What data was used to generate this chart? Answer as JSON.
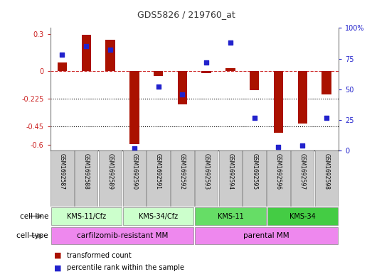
{
  "title": "GDS5826 / 219760_at",
  "samples": [
    "GSM1692587",
    "GSM1692588",
    "GSM1692589",
    "GSM1692590",
    "GSM1692591",
    "GSM1692592",
    "GSM1692593",
    "GSM1692594",
    "GSM1692595",
    "GSM1692596",
    "GSM1692597",
    "GSM1692598"
  ],
  "transformed_count": [
    0.07,
    0.295,
    0.255,
    -0.595,
    -0.04,
    -0.27,
    -0.02,
    0.02,
    -0.16,
    -0.505,
    -0.43,
    -0.19
  ],
  "percentile_rank": [
    78,
    85,
    82,
    2,
    52,
    46,
    72,
    88,
    27,
    3,
    4,
    27
  ],
  "cell_line_groups": [
    {
      "label": "KMS-11/Cfz",
      "start": 0,
      "end": 3,
      "color": "#ccffcc"
    },
    {
      "label": "KMS-34/Cfz",
      "start": 3,
      "end": 6,
      "color": "#ccffcc"
    },
    {
      "label": "KMS-11",
      "start": 6,
      "end": 9,
      "color": "#66dd66"
    },
    {
      "label": "KMS-34",
      "start": 9,
      "end": 12,
      "color": "#44cc44"
    }
  ],
  "cell_type_groups": [
    {
      "label": "carfilzomib-resistant MM",
      "start": 0,
      "end": 6,
      "color": "#ee88ee"
    },
    {
      "label": "parental MM",
      "start": 6,
      "end": 12,
      "color": "#ee88ee"
    }
  ],
  "bar_color": "#aa1100",
  "dot_color": "#2222cc",
  "ylim_left": [
    -0.65,
    0.35
  ],
  "ylim_right": [
    0,
    100
  ],
  "yticks_left": [
    0.3,
    0,
    -0.225,
    -0.45,
    -0.6
  ],
  "yticks_right": [
    100,
    75,
    50,
    25,
    0
  ],
  "hlines": [
    0.0,
    -0.225,
    -0.45
  ],
  "hline_styles": [
    "dashed",
    "dotted",
    "dotted"
  ],
  "hline_colors": [
    "#cc2222",
    "#000000",
    "#000000"
  ],
  "background_color": "#ffffff",
  "bar_width": 0.4
}
